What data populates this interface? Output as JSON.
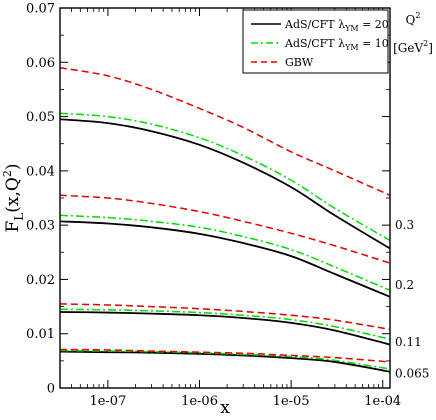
{
  "chart_data": {
    "type": "line",
    "xscale": "log",
    "xlim": [
      3e-08,
      0.00012
    ],
    "ylim": [
      0,
      0.07
    ],
    "xlabel": "x",
    "ylabel_main": "F",
    "ylabel_sub": "L",
    "ylabel_rest": "(x,Q",
    "ylabel_sup": "2",
    "ylabel_close": ")",
    "xticks": [
      {
        "value": 1e-07,
        "label": "1e-07"
      },
      {
        "value": 1e-06,
        "label": "1e-06"
      },
      {
        "value": 1e-05,
        "label": "1e-05"
      },
      {
        "value": 0.0001,
        "label": "1e-04"
      }
    ],
    "yticks": [
      {
        "value": 0,
        "label": "0"
      },
      {
        "value": 0.01,
        "label": "0.01"
      },
      {
        "value": 0.02,
        "label": "0.02"
      },
      {
        "value": 0.03,
        "label": "0.03"
      },
      {
        "value": 0.04,
        "label": "0.04"
      },
      {
        "value": 0.05,
        "label": "0.05"
      },
      {
        "value": 0.06,
        "label": "0.06"
      },
      {
        "value": 0.07,
        "label": "0.07"
      }
    ],
    "legend": {
      "placement": "top-right",
      "entries": [
        {
          "key": "ads20",
          "text": "AdS/CFT  λ",
          "sub": "YM",
          "value": " = 20"
        },
        {
          "key": "ads10",
          "text": "AdS/CFT  λ",
          "sub": "YM",
          "value": " = 10"
        },
        {
          "key": "gbw",
          "text": "GBW",
          "sub": "",
          "value": ""
        }
      ]
    },
    "q2_header": {
      "title": "Q",
      "title_sup": "2",
      "unit": "[GeV",
      "unit_sup": "2",
      "unit_close": "]"
    },
    "q2_labels": [
      {
        "label": "0.3",
        "y": 0.03
      },
      {
        "label": "0.2",
        "y": 0.019
      },
      {
        "label": "0.11",
        "y": 0.0085
      },
      {
        "label": "0.065",
        "y": 0.0027
      }
    ],
    "x": [
      3e-08,
      1e-07,
      3e-07,
      1e-06,
      3e-06,
      1e-05,
      3e-05,
      0.00012
    ],
    "series": [
      {
        "name": "AdS/CFT λ_YM = 20",
        "key": "ads20",
        "color": "#000000",
        "style": "solid",
        "q2": "0.3",
        "y": [
          0.0495,
          0.0488,
          0.0473,
          0.0448,
          0.0415,
          0.037,
          0.0318,
          0.0257
        ]
      },
      {
        "name": "AdS/CFT λ_YM = 10",
        "key": "ads10",
        "color": "#00dd00",
        "style": "dashdot",
        "q2": "0.3",
        "y": [
          0.0506,
          0.05,
          0.0486,
          0.0461,
          0.0428,
          0.0383,
          0.0331,
          0.0272
        ]
      },
      {
        "name": "GBW",
        "key": "gbw",
        "color": "#e00000",
        "style": "dashed",
        "q2": "0.3",
        "y": [
          0.059,
          0.0575,
          0.055,
          0.0515,
          0.048,
          0.0435,
          0.04,
          0.0355
        ]
      },
      {
        "name": "AdS/CFT λ_YM = 20",
        "key": "ads20",
        "color": "#000000",
        "style": "solid",
        "q2": "0.2",
        "y": [
          0.0307,
          0.0303,
          0.0296,
          0.0284,
          0.0267,
          0.0243,
          0.021,
          0.0168
        ]
      },
      {
        "name": "AdS/CFT λ_YM = 10",
        "key": "ads10",
        "color": "#00dd00",
        "style": "dashdot",
        "q2": "0.2",
        "y": [
          0.0318,
          0.0314,
          0.0307,
          0.0296,
          0.0279,
          0.0255,
          0.0223,
          0.018
        ]
      },
      {
        "name": "GBW",
        "key": "gbw",
        "color": "#e00000",
        "style": "dashed",
        "q2": "0.2",
        "y": [
          0.0355,
          0.035,
          0.034,
          0.0325,
          0.0307,
          0.0285,
          0.0262,
          0.023
        ]
      },
      {
        "name": "AdS/CFT λ_YM = 20",
        "key": "ads20",
        "color": "#000000",
        "style": "solid",
        "q2": "0.11",
        "y": [
          0.014,
          0.0139,
          0.0137,
          0.0134,
          0.0129,
          0.012,
          0.0106,
          0.008
        ]
      },
      {
        "name": "AdS/CFT λ_YM = 10",
        "key": "ads10",
        "color": "#00dd00",
        "style": "dashdot",
        "q2": "0.11",
        "y": [
          0.0145,
          0.0144,
          0.0142,
          0.0139,
          0.0134,
          0.0126,
          0.0113,
          0.009
        ]
      },
      {
        "name": "GBW",
        "key": "gbw",
        "color": "#e00000",
        "style": "dashed",
        "q2": "0.11",
        "y": [
          0.0155,
          0.0153,
          0.015,
          0.0146,
          0.0141,
          0.0134,
          0.0125,
          0.0108
        ]
      },
      {
        "name": "AdS/CFT λ_YM = 20",
        "key": "ads20",
        "color": "#000000",
        "style": "solid",
        "q2": "0.065",
        "y": [
          0.0067,
          0.0066,
          0.0065,
          0.0063,
          0.006,
          0.0055,
          0.0048,
          0.003
        ]
      },
      {
        "name": "AdS/CFT λ_YM = 10",
        "key": "ads10",
        "color": "#00dd00",
        "style": "dashdot",
        "q2": "0.065",
        "y": [
          0.0069,
          0.0068,
          0.0067,
          0.0065,
          0.0062,
          0.0058,
          0.0051,
          0.0035
        ]
      },
      {
        "name": "GBW",
        "key": "gbw",
        "color": "#e00000",
        "style": "dashed",
        "q2": "0.065",
        "y": [
          0.0071,
          0.007,
          0.0068,
          0.0066,
          0.0064,
          0.006,
          0.0056,
          0.0048
        ]
      }
    ]
  }
}
